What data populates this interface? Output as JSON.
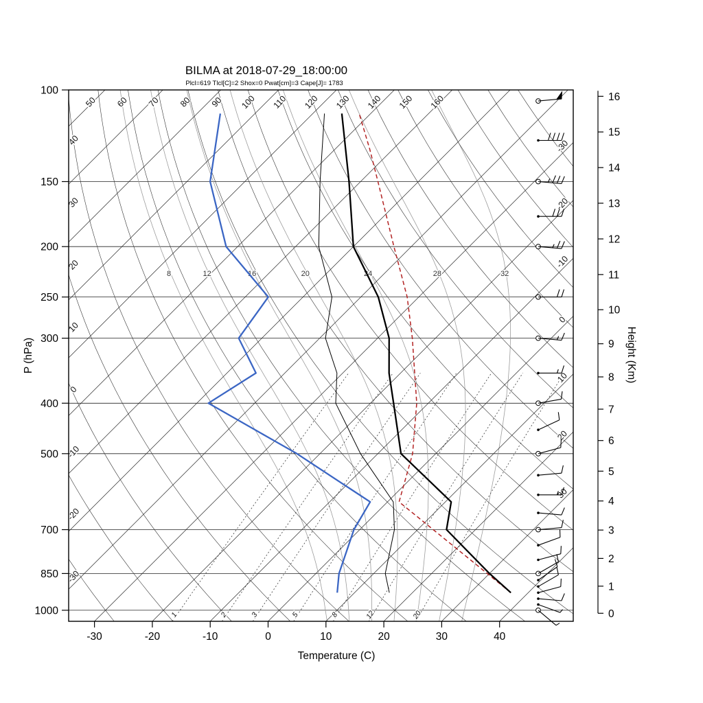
{
  "title": "BILMA at 2018-07-29_18:00:00",
  "subtitle": "Plcl=619 Tlcl[C]=2 Shox=0 Pwat[cm]=3 Cape[J]= 1783",
  "colors": {
    "subtitle": "#a0522d",
    "temperature_curve": "#000000",
    "dewpoint_curve": "#3b66c4",
    "parcel_curve": "#b22222"
  },
  "axes": {
    "pressure_label": "P (hPa)",
    "pressure_ticks": [
      100,
      150,
      200,
      250,
      300,
      400,
      500,
      700,
      850,
      1000
    ],
    "temp_label": "Temperature (C)",
    "temp_ticks": [
      -30,
      -20,
      -10,
      0,
      10,
      20,
      30,
      40
    ],
    "height_label": "Height (Km)",
    "height_ticks_km": [
      0,
      1,
      2,
      3,
      4,
      5,
      6,
      7,
      8,
      9,
      10,
      11,
      12,
      13,
      14,
      15,
      16
    ]
  },
  "background_labels": {
    "top_dry_adiabats": [
      50,
      60,
      70,
      80,
      90,
      100,
      110,
      120,
      130,
      140,
      150,
      160
    ],
    "left_dry_adiabats": [
      40,
      30,
      20,
      10,
      0,
      -10,
      -20,
      -30
    ],
    "right_isotherms": [
      -30,
      -20,
      -10,
      0,
      10,
      20,
      30
    ],
    "moist_adiabats": [
      8,
      12,
      16,
      20,
      24,
      28,
      32
    ],
    "mixing_ratio_gkg": [
      1,
      2,
      3,
      5,
      8,
      12,
      20
    ]
  },
  "chart_data": {
    "type": "skewt",
    "station": "BILMA",
    "datetime": "2018-07-29_18:00:00",
    "indices": {
      "Plcl_hPa": 619,
      "Tlcl_C": 2,
      "Showalter": 0,
      "Pwat_cm": 3,
      "Cape_J": 1783
    },
    "pressure_range_hPa": [
      100,
      1050
    ],
    "temp_axis_range_C": [
      -30,
      40
    ],
    "height_range_km": [
      0,
      16
    ],
    "sounding": {
      "pressure_hPa": [
        925,
        850,
        700,
        619,
        500,
        400,
        350,
        300,
        250,
        200,
        150,
        111
      ],
      "temperature_C": [
        37,
        30,
        15,
        11,
        -6,
        -16,
        -22,
        -28,
        -37,
        -50,
        -62,
        -75
      ],
      "dewpoint_C": [
        7,
        4,
        -1,
        -3,
        -24,
        -48,
        -45,
        -54,
        -56,
        -72,
        -86,
        -96
      ],
      "wetbulb_C": [
        16,
        12,
        6,
        1,
        -13,
        -26,
        -31,
        -39,
        -45,
        -56,
        -67,
        -78
      ]
    },
    "parcel": {
      "lcl_hPa": 619,
      "lcl_temp_C": 2,
      "pressure_hPa": [
        925,
        619,
        500,
        400,
        300,
        250,
        200,
        150,
        130,
        111
      ],
      "temperature_C": [
        37,
        2,
        -4,
        -12,
        -24,
        -32,
        -43,
        -57,
        -64,
        -72
      ]
    },
    "wind": [
      {
        "p": 1000,
        "spd": 4,
        "dir": 130
      },
      {
        "p": 975,
        "spd": 7,
        "dir": 110
      },
      {
        "p": 950,
        "spd": 9,
        "dir": 95
      },
      {
        "p": 925,
        "spd": 10,
        "dir": 75
      },
      {
        "p": 900,
        "spd": 12,
        "dir": 60
      },
      {
        "p": 875,
        "spd": 10,
        "dir": 55
      },
      {
        "p": 850,
        "spd": 12,
        "dir": 60
      },
      {
        "p": 800,
        "spd": 10,
        "dir": 75
      },
      {
        "p": 750,
        "spd": 8,
        "dir": 70
      },
      {
        "p": 700,
        "spd": 10,
        "dir": 85
      },
      {
        "p": 650,
        "spd": 12,
        "dir": 95
      },
      {
        "p": 600,
        "spd": 15,
        "dir": 90
      },
      {
        "p": 550,
        "spd": 10,
        "dir": 85
      },
      {
        "p": 500,
        "spd": 12,
        "dir": 75
      },
      {
        "p": 450,
        "spd": 10,
        "dir": 65
      },
      {
        "p": 400,
        "spd": 10,
        "dir": 80
      },
      {
        "p": 350,
        "spd": 14,
        "dir": 90
      },
      {
        "p": 300,
        "spd": 16,
        "dir": 95
      },
      {
        "p": 250,
        "spd": 20,
        "dir": 90
      },
      {
        "p": 200,
        "spd": 25,
        "dir": 95
      },
      {
        "p": 175,
        "spd": 30,
        "dir": 90
      },
      {
        "p": 150,
        "spd": 35,
        "dir": 95
      },
      {
        "p": 125,
        "spd": 40,
        "dir": 90
      },
      {
        "p": 105,
        "spd": 50,
        "dir": 85
      }
    ],
    "wind_mandatory_levels": [
      1000,
      850,
      700,
      500,
      400,
      300,
      250,
      200,
      150,
      105
    ]
  }
}
